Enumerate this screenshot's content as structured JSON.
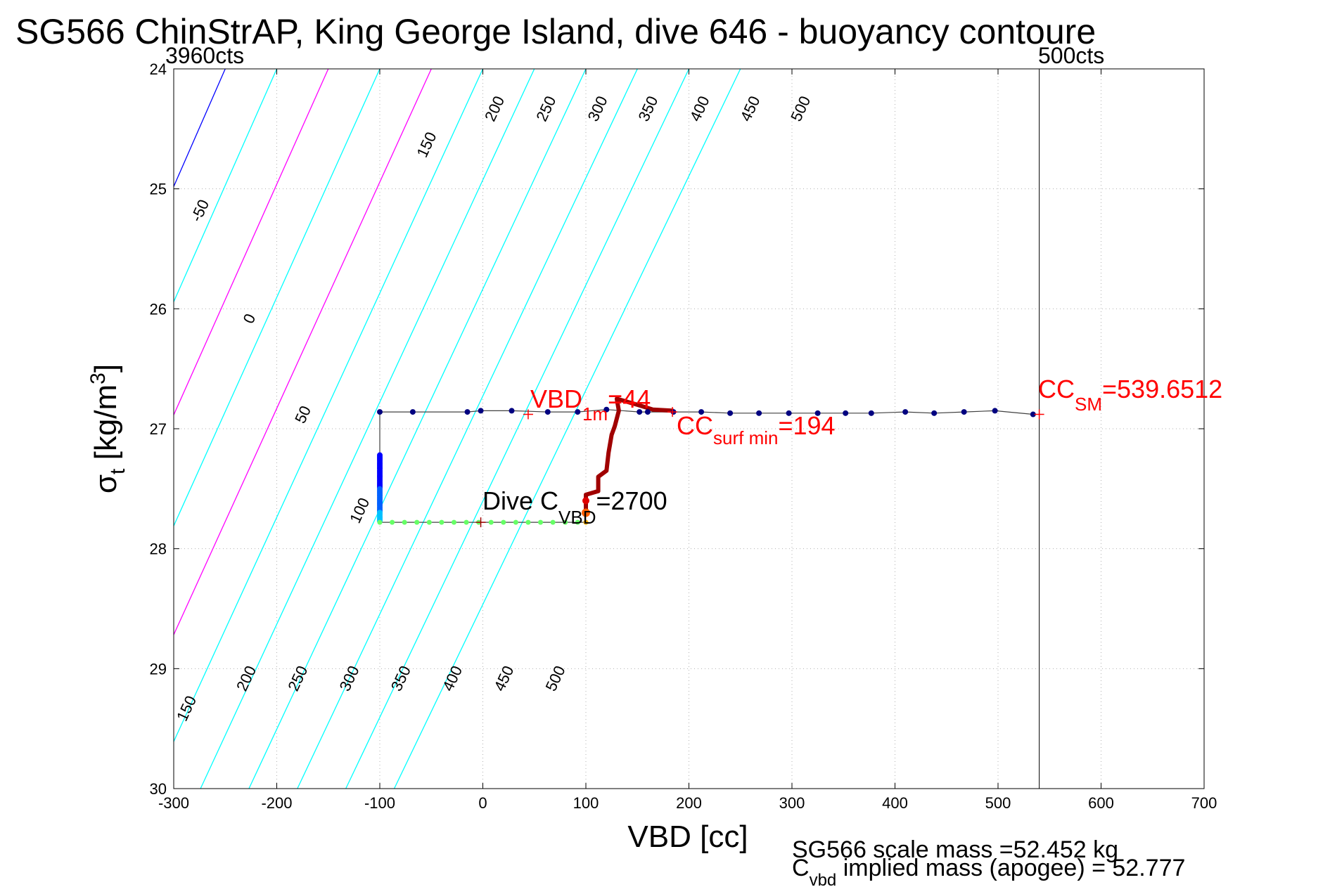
{
  "chart_data": {
    "type": "line",
    "title": "SG566 ChinStrAP, King George Island, dive 646 - buoyancy contoure",
    "xlabel": "VBD [cc]",
    "ylabel_main": "σ",
    "ylabel_sub": "t",
    "ylabel_unit_a": " [kg/m",
    "ylabel_sup": "3",
    "ylabel_unit_b": "]",
    "xlim": [
      -300,
      700
    ],
    "ylim": [
      24,
      30
    ],
    "y_reversed": true,
    "grid": true,
    "xticks": [
      -300,
      -200,
      -100,
      0,
      100,
      200,
      300,
      400,
      500,
      600,
      700
    ],
    "yticks": [
      24,
      25,
      26,
      27,
      28,
      29,
      30
    ],
    "limit_labels": {
      "left": "3960cts",
      "right": "500cts"
    },
    "limit_line_x": 540,
    "contour_colors": {
      "negative": "#0000ff",
      "zero": "#0000ff",
      "other": "#00ffff",
      "major": "#ff00ff"
    },
    "contours": [
      {
        "level": -50,
        "intercept": -300,
        "slope": 50.5,
        "color": "#00ffff"
      },
      {
        "level": 0,
        "intercept": -250,
        "slope": 51,
        "color": "#0000ff"
      },
      {
        "level": 50,
        "intercept": -200,
        "slope": 51.5,
        "color": "#00ffff"
      },
      {
        "level": 100,
        "intercept": -150,
        "slope": 52,
        "color": "#ff00ff"
      },
      {
        "level": 150,
        "intercept": -100,
        "slope": 52.5,
        "color": "#00ffff"
      },
      {
        "level": 200,
        "intercept": -50,
        "slope": 53,
        "color": "#ff00ff"
      },
      {
        "level": 250,
        "intercept": 0,
        "slope": 53.5,
        "color": "#00ffff"
      },
      {
        "level": 300,
        "intercept": 50,
        "slope": 54,
        "color": "#00ffff"
      },
      {
        "level": 350,
        "intercept": 100,
        "slope": 54.5,
        "color": "#00ffff"
      },
      {
        "level": 400,
        "intercept": 150,
        "slope": 55,
        "color": "#00ffff"
      },
      {
        "level": 450,
        "intercept": 200,
        "slope": 55.5,
        "color": "#00ffff"
      },
      {
        "level": 500,
        "intercept": 250,
        "slope": 56,
        "color": "#00ffff"
      }
    ],
    "contour_labels_top": [
      {
        "text": "-50",
        "x": -270,
        "y": 25.2
      },
      {
        "text": "0",
        "x": -222,
        "y": 26.1
      },
      {
        "text": "50",
        "x": -170,
        "y": 26.9
      },
      {
        "text": "100",
        "x": -115,
        "y": 27.7
      },
      {
        "text": "150",
        "x": -50,
        "y": 24.65
      },
      {
        "text": "200",
        "x": 16,
        "y": 24.35
      },
      {
        "text": "250",
        "x": 66,
        "y": 24.35
      },
      {
        "text": "300",
        "x": 116,
        "y": 24.35
      },
      {
        "text": "350",
        "x": 165,
        "y": 24.35
      },
      {
        "text": "400",
        "x": 215,
        "y": 24.35
      },
      {
        "text": "450",
        "x": 264,
        "y": 24.35
      },
      {
        "text": "500",
        "x": 313,
        "y": 24.35
      }
    ],
    "contour_labels_bottom": [
      {
        "text": "150",
        "x": -283,
        "y": 29.35
      },
      {
        "text": "200",
        "x": -225,
        "y": 29.1
      },
      {
        "text": "250",
        "x": -175,
        "y": 29.1
      },
      {
        "text": "300",
        "x": -125,
        "y": 29.1
      },
      {
        "text": "350",
        "x": -75,
        "y": 29.1
      },
      {
        "text": "400",
        "x": -25,
        "y": 29.1
      },
      {
        "text": "450",
        "x": 25,
        "y": 29.1
      },
      {
        "text": "500",
        "x": 75,
        "y": 29.1
      }
    ],
    "trajectory": {
      "descent": [
        [
          -100,
          26.86
        ],
        [
          -100,
          27.78
        ],
        [
          100,
          27.78
        ]
      ],
      "climb": [
        [
          100,
          27.72
        ],
        [
          100,
          27.55
        ],
        [
          112,
          27.52
        ],
        [
          112,
          27.4
        ],
        [
          120,
          27.35
        ],
        [
          122,
          27.2
        ],
        [
          125,
          27.05
        ],
        [
          128,
          26.98
        ],
        [
          132,
          26.85
        ],
        [
          130,
          26.75
        ],
        [
          150,
          26.8
        ],
        [
          165,
          26.84
        ],
        [
          185,
          26.85
        ]
      ],
      "surface": [
        [
          -100,
          26.86
        ],
        [
          -68,
          26.86
        ],
        [
          -15,
          26.86
        ],
        [
          -2,
          26.85
        ],
        [
          28,
          26.85
        ],
        [
          63,
          26.86
        ],
        [
          92,
          26.86
        ],
        [
          120,
          26.84
        ],
        [
          152,
          26.86
        ],
        [
          160,
          26.86
        ],
        [
          185,
          26.86
        ],
        [
          212,
          26.86
        ],
        [
          240,
          26.87
        ],
        [
          268,
          26.87
        ],
        [
          297,
          26.87
        ],
        [
          325,
          26.87
        ],
        [
          352,
          26.87
        ],
        [
          377,
          26.87
        ],
        [
          410,
          26.86
        ],
        [
          438,
          26.87
        ],
        [
          467,
          26.86
        ],
        [
          497,
          26.85
        ],
        [
          534,
          26.88
        ]
      ],
      "descent_points_x": [
        -100,
        -88,
        -76,
        -64,
        -52,
        -40,
        -28,
        -16,
        -4,
        8,
        20,
        32,
        44,
        56,
        68,
        80,
        92,
        100
      ],
      "descent_points_y": 27.78
    },
    "annotations": {
      "vbd_1m": {
        "main": "VBD",
        "sub": "1m",
        "value": "=44",
        "x": 44,
        "y": 26.88
      },
      "cc_surf_min": {
        "main": "CC",
        "sub": "surf min",
        "value": "=194",
        "x": 194,
        "y": 26.95
      },
      "cc_sm": {
        "main": "CC",
        "sub": "SM",
        "value": "=539.6512",
        "x": 540,
        "y": 26.88
      },
      "dive_cvbd": {
        "main": "Dive C",
        "sub": "VBD",
        "value": "=2700",
        "x": -2,
        "y": 27.78
      }
    },
    "footer": {
      "line1": "SG566 scale mass =52.452 kg",
      "line2_main": "C",
      "line2_sub": "vbd",
      "line2_rest": " implied mass (apogee) = 52.777"
    }
  }
}
